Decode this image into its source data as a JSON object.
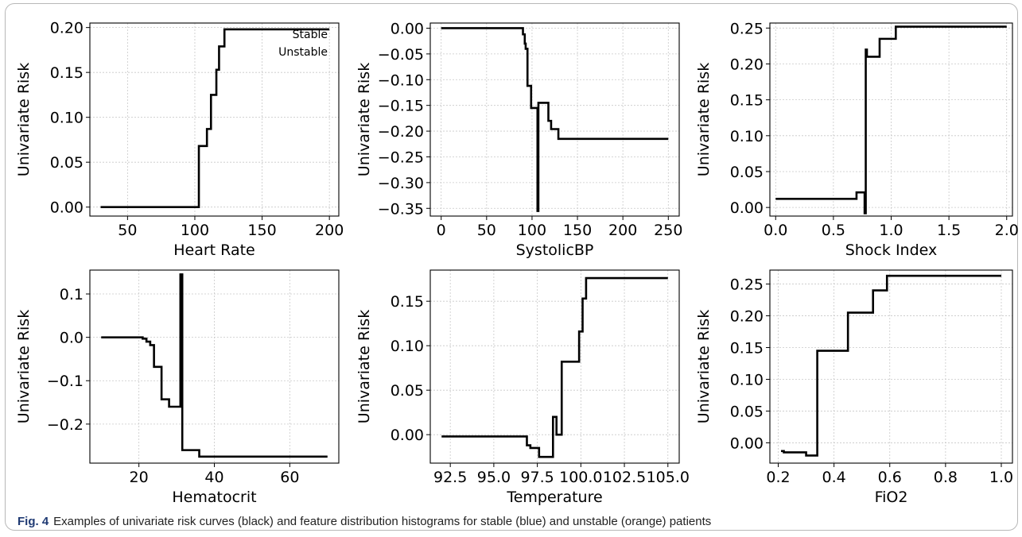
{
  "caption": {
    "label": "Fig. 4",
    "text": "Examples of univariate risk curves (black) and feature distribution histograms for stable (blue) and unstable (orange) patients"
  },
  "colors": {
    "curve": "#000000",
    "grid": "#c8c8c8",
    "axis": "#000000"
  },
  "chart_data": [
    {
      "type": "line",
      "title": "",
      "xlabel": "Heart Rate",
      "ylabel": "Univariate Risk",
      "xlim": [
        22,
        207
      ],
      "ylim": [
        -0.01,
        0.205
      ],
      "xticks": [
        50,
        100,
        150,
        200
      ],
      "xtick_labels": [
        "50",
        "100",
        "150",
        "200"
      ],
      "yticks": [
        0.0,
        0.05,
        0.1,
        0.15,
        0.2
      ],
      "ytick_labels": [
        "0.00",
        "0.05",
        "0.10",
        "0.15",
        "0.20"
      ],
      "grid": true,
      "legend": {
        "entries": [
          "Stable",
          "Unstable"
        ],
        "placement": "top-right"
      },
      "series": [
        {
          "points": [
            [
              30,
              0.0
            ],
            [
              103,
              0.0
            ],
            [
              103,
              0.068
            ],
            [
              109,
              0.068
            ],
            [
              109,
              0.087
            ],
            [
              112,
              0.087
            ],
            [
              112,
              0.125
            ],
            [
              116,
              0.125
            ],
            [
              116,
              0.153
            ],
            [
              118,
              0.153
            ],
            [
              118,
              0.179
            ],
            [
              122,
              0.179
            ],
            [
              122,
              0.198
            ],
            [
              200,
              0.198
            ]
          ]
        }
      ]
    },
    {
      "type": "line",
      "title": "",
      "xlabel": "SystolicBP",
      "ylabel": "Univariate Risk",
      "xlim": [
        -12,
        262
      ],
      "ylim": [
        -0.365,
        0.01
      ],
      "xticks": [
        0,
        50,
        100,
        150,
        200,
        250
      ],
      "xtick_labels": [
        "0",
        "50",
        "100",
        "150",
        "200",
        "250"
      ],
      "yticks": [
        0.0,
        -0.05,
        -0.1,
        -0.15,
        -0.2,
        -0.25,
        -0.3,
        -0.35
      ],
      "ytick_labels": [
        "0.00",
        "−0.05",
        "−0.10",
        "−0.15",
        "−0.20",
        "−0.25",
        "−0.30",
        "−0.35"
      ],
      "grid": true,
      "series": [
        {
          "points": [
            [
              0,
              0.0
            ],
            [
              90,
              0.0
            ],
            [
              90,
              -0.012
            ],
            [
              92,
              -0.012
            ],
            [
              92,
              -0.03
            ],
            [
              93,
              -0.03
            ],
            [
              93,
              -0.04
            ],
            [
              95,
              -0.04
            ],
            [
              95,
              -0.112
            ],
            [
              99,
              -0.112
            ],
            [
              99,
              -0.155
            ],
            [
              106,
              -0.155
            ],
            [
              106,
              -0.355
            ],
            [
              107,
              -0.355
            ],
            [
              107,
              -0.145
            ],
            [
              118,
              -0.145
            ],
            [
              118,
              -0.18
            ],
            [
              121,
              -0.18
            ],
            [
              121,
              -0.196
            ],
            [
              129,
              -0.196
            ],
            [
              129,
              -0.215
            ],
            [
              250,
              -0.215
            ]
          ]
        }
      ]
    },
    {
      "type": "line",
      "title": "",
      "xlabel": "Shock Index",
      "ylabel": "Univariate Risk",
      "xlim": [
        -0.05,
        2.05
      ],
      "ylim": [
        -0.012,
        0.257
      ],
      "xticks": [
        0.0,
        0.5,
        1.0,
        1.5,
        2.0
      ],
      "xtick_labels": [
        "0.0",
        "0.5",
        "1.0",
        "1.5",
        "2.0"
      ],
      "yticks": [
        0.0,
        0.05,
        0.1,
        0.15,
        0.2,
        0.25
      ],
      "ytick_labels": [
        "0.00",
        "0.05",
        "0.10",
        "0.15",
        "0.20",
        "0.25"
      ],
      "grid": true,
      "series": [
        {
          "points": [
            [
              0.0,
              0.012
            ],
            [
              0.7,
              0.012
            ],
            [
              0.7,
              0.021
            ],
            [
              0.77,
              0.021
            ],
            [
              0.77,
              -0.008
            ],
            [
              0.78,
              -0.008
            ],
            [
              0.78,
              0.22
            ],
            [
              0.79,
              0.22
            ],
            [
              0.79,
              0.21
            ],
            [
              0.9,
              0.21
            ],
            [
              0.9,
              0.235
            ],
            [
              1.04,
              0.235
            ],
            [
              1.04,
              0.252
            ],
            [
              2.0,
              0.252
            ]
          ]
        }
      ]
    },
    {
      "type": "line",
      "title": "",
      "xlabel": "Hematocrit",
      "ylabel": "Univariate Risk",
      "xlim": [
        7,
        73
      ],
      "ylim": [
        -0.29,
        0.155
      ],
      "xticks": [
        20,
        40,
        60
      ],
      "xtick_labels": [
        "20",
        "40",
        "60"
      ],
      "yticks": [
        0.1,
        0.0,
        -0.1,
        -0.2
      ],
      "ytick_labels": [
        "0.1",
        "0.0",
        "−0.1",
        "−0.2"
      ],
      "grid": true,
      "series": [
        {
          "points": [
            [
              10,
              0.0
            ],
            [
              21,
              0.0
            ],
            [
              21,
              -0.003
            ],
            [
              22,
              -0.003
            ],
            [
              22,
              -0.01
            ],
            [
              23,
              -0.01
            ],
            [
              23,
              -0.018
            ],
            [
              24,
              -0.018
            ],
            [
              24,
              -0.068
            ],
            [
              26,
              -0.068
            ],
            [
              26,
              -0.143
            ],
            [
              28,
              -0.143
            ],
            [
              28,
              -0.16
            ],
            [
              31,
              -0.16
            ],
            [
              31,
              0.145
            ],
            [
              31.5,
              0.145
            ],
            [
              31.5,
              -0.26
            ],
            [
              36,
              -0.26
            ],
            [
              36,
              -0.275
            ],
            [
              70,
              -0.275
            ]
          ]
        }
      ]
    },
    {
      "type": "line",
      "title": "",
      "xlabel": "Temperature",
      "ylabel": "Univariate Risk",
      "xlim": [
        91.35,
        105.65
      ],
      "ylim": [
        -0.032,
        0.185
      ],
      "xticks": [
        92.5,
        95.0,
        97.5,
        100.0,
        102.5,
        105.0
      ],
      "xtick_labels": [
        "92.5",
        "95.0",
        "97.5",
        "100.0",
        "102.5",
        "105.0"
      ],
      "yticks": [
        0.0,
        0.05,
        0.1,
        0.15
      ],
      "ytick_labels": [
        "0.00",
        "0.05",
        "0.10",
        "0.15"
      ],
      "grid": true,
      "series": [
        {
          "points": [
            [
              92,
              -0.002
            ],
            [
              96.9,
              -0.002
            ],
            [
              96.9,
              -0.012
            ],
            [
              97.1,
              -0.012
            ],
            [
              97.1,
              -0.015
            ],
            [
              97.6,
              -0.015
            ],
            [
              97.6,
              -0.025
            ],
            [
              98.4,
              -0.025
            ],
            [
              98.4,
              0.02
            ],
            [
              98.6,
              0.02
            ],
            [
              98.6,
              0.0
            ],
            [
              98.9,
              0.0
            ],
            [
              98.9,
              0.082
            ],
            [
              99.9,
              0.082
            ],
            [
              99.9,
              0.116
            ],
            [
              100.1,
              0.116
            ],
            [
              100.1,
              0.153
            ],
            [
              100.3,
              0.153
            ],
            [
              100.3,
              0.176
            ],
            [
              105,
              0.176
            ]
          ]
        }
      ]
    },
    {
      "type": "line",
      "title": "",
      "xlabel": "FiO2",
      "ylabel": "Univariate Risk",
      "xlim": [
        0.17,
        1.04
      ],
      "ylim": [
        -0.032,
        0.272
      ],
      "xticks": [
        0.2,
        0.4,
        0.6,
        0.8,
        1.0
      ],
      "xtick_labels": [
        "0.2",
        "0.4",
        "0.6",
        "0.8",
        "1.0"
      ],
      "yticks": [
        0.0,
        0.05,
        0.1,
        0.15,
        0.2,
        0.25
      ],
      "ytick_labels": [
        "0.00",
        "0.05",
        "0.10",
        "0.15",
        "0.20",
        "0.25"
      ],
      "grid": true,
      "series": [
        {
          "points": [
            [
              0.21,
              -0.013
            ],
            [
              0.22,
              -0.013
            ],
            [
              0.22,
              -0.015
            ],
            [
              0.3,
              -0.015
            ],
            [
              0.3,
              -0.02
            ],
            [
              0.34,
              -0.02
            ],
            [
              0.34,
              0.145
            ],
            [
              0.45,
              0.145
            ],
            [
              0.45,
              0.205
            ],
            [
              0.54,
              0.205
            ],
            [
              0.54,
              0.24
            ],
            [
              0.59,
              0.24
            ],
            [
              0.59,
              0.263
            ],
            [
              1.0,
              0.263
            ]
          ]
        }
      ]
    }
  ]
}
